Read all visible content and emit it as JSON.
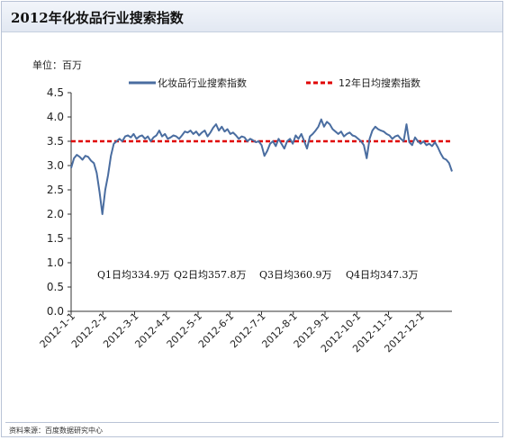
{
  "header": {
    "title": "2012年化妆品行业搜索指数"
  },
  "footer": {
    "source": "资料来源：百度数据研究中心"
  },
  "chart_data": {
    "type": "line",
    "unit_label": "单位：百万",
    "ylim": [
      0,
      4.5
    ],
    "yticks": [
      "0.0",
      "0.5",
      "1.0",
      "1.5",
      "2.0",
      "2.5",
      "3.0",
      "3.5",
      "4.0",
      "4.5"
    ],
    "x_tick_labels": [
      "2012-1-1",
      "2012-2-1",
      "2012-3-1",
      "2012-4-1",
      "2012-5-1",
      "2012-6-1",
      "2012-7-1",
      "2012-8-1",
      "2012-9-1",
      "2012-10-1",
      "2012-11-1",
      "2012-12-1"
    ],
    "grid": false,
    "legend_placement": "top",
    "series": [
      {
        "name": "化妆品行业搜索指数",
        "color": "#4a6da0",
        "style": "solid",
        "values": [
          2.95,
          3.15,
          3.22,
          3.18,
          3.12,
          3.2,
          3.18,
          3.1,
          3.05,
          2.85,
          2.45,
          2.0,
          2.5,
          2.8,
          3.2,
          3.45,
          3.5,
          3.55,
          3.5,
          3.6,
          3.62,
          3.58,
          3.65,
          3.55,
          3.6,
          3.62,
          3.55,
          3.6,
          3.5,
          3.58,
          3.62,
          3.72,
          3.6,
          3.65,
          3.55,
          3.58,
          3.62,
          3.6,
          3.55,
          3.62,
          3.7,
          3.68,
          3.72,
          3.65,
          3.7,
          3.62,
          3.68,
          3.72,
          3.6,
          3.68,
          3.78,
          3.85,
          3.72,
          3.8,
          3.7,
          3.75,
          3.65,
          3.68,
          3.62,
          3.55,
          3.6,
          3.58,
          3.5,
          3.55,
          3.52,
          3.48,
          3.5,
          3.42,
          3.2,
          3.3,
          3.45,
          3.5,
          3.4,
          3.55,
          3.45,
          3.35,
          3.5,
          3.55,
          3.45,
          3.62,
          3.55,
          3.65,
          3.5,
          3.35,
          3.6,
          3.65,
          3.72,
          3.8,
          3.95,
          3.8,
          3.9,
          3.85,
          3.75,
          3.7,
          3.65,
          3.7,
          3.6,
          3.65,
          3.68,
          3.62,
          3.6,
          3.55,
          3.5,
          3.42,
          3.15,
          3.55,
          3.72,
          3.8,
          3.75,
          3.72,
          3.7,
          3.65,
          3.62,
          3.55,
          3.6,
          3.62,
          3.55,
          3.5,
          3.85,
          3.48,
          3.42,
          3.58,
          3.5,
          3.45,
          3.5,
          3.42,
          3.45,
          3.4,
          3.48,
          3.38,
          3.25,
          3.15,
          3.12,
          3.05,
          2.88
        ]
      },
      {
        "name": "12年日均搜索指数",
        "color": "#e00000",
        "style": "dashed",
        "values": [
          3.5,
          3.5
        ]
      }
    ],
    "annotations": [
      "Q1日均334.9万",
      "Q2日均357.8万",
      "Q3日均360.9万",
      "Q4日均347.3万"
    ]
  }
}
